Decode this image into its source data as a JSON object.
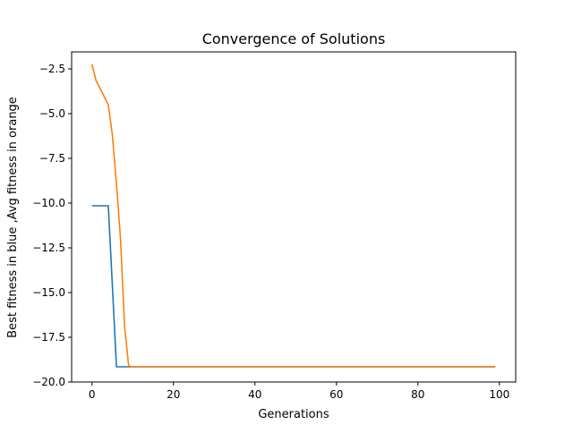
{
  "chart_data": {
    "type": "line",
    "title": "Convergence of Solutions",
    "xlabel": "Generations",
    "ylabel": "Best fitness in blue ,Avg fitness in orange",
    "xlim": [
      -5,
      104
    ],
    "ylim": [
      -20.0,
      -1.55
    ],
    "x_ticks": [
      0,
      20,
      40,
      60,
      80,
      100
    ],
    "x_tick_labels": [
      "0",
      "20",
      "40",
      "60",
      "80",
      "100"
    ],
    "y_ticks": [
      -2.5,
      -5.0,
      -7.5,
      -10.0,
      -12.5,
      -15.0,
      -17.5,
      -20.0
    ],
    "y_tick_labels": [
      "−2.5",
      "−5.0",
      "−7.5",
      "−10.0",
      "−12.5",
      "−15.0",
      "−17.5",
      "−20.0"
    ],
    "grid": false,
    "legend": "none",
    "series": [
      {
        "color": "#1f77b4",
        "x": [
          0,
          1,
          2,
          3,
          4,
          5,
          6,
          7,
          8,
          9,
          10,
          15,
          20,
          30,
          40,
          50,
          60,
          70,
          80,
          90,
          99
        ],
        "y": [
          -10.15,
          -10.15,
          -10.15,
          -10.15,
          -10.15,
          -14.6,
          -19.15,
          -19.15,
          -19.15,
          -19.15,
          -19.15,
          -19.15,
          -19.15,
          -19.15,
          -19.15,
          -19.15,
          -19.15,
          -19.15,
          -19.15,
          -19.15,
          -19.15
        ]
      },
      {
        "color": "#ff7f0e",
        "x": [
          0,
          1,
          2,
          3,
          4,
          5,
          6,
          7,
          8,
          9,
          10,
          15,
          20,
          30,
          40,
          50,
          60,
          70,
          80,
          90,
          99
        ],
        "y": [
          -2.25,
          -3.15,
          -3.6,
          -4.05,
          -4.5,
          -6.2,
          -8.9,
          -12.0,
          -16.9,
          -19.1,
          -19.15,
          -19.15,
          -19.15,
          -19.15,
          -19.15,
          -19.15,
          -19.15,
          -19.15,
          -19.15,
          -19.15,
          -19.15
        ]
      }
    ]
  }
}
